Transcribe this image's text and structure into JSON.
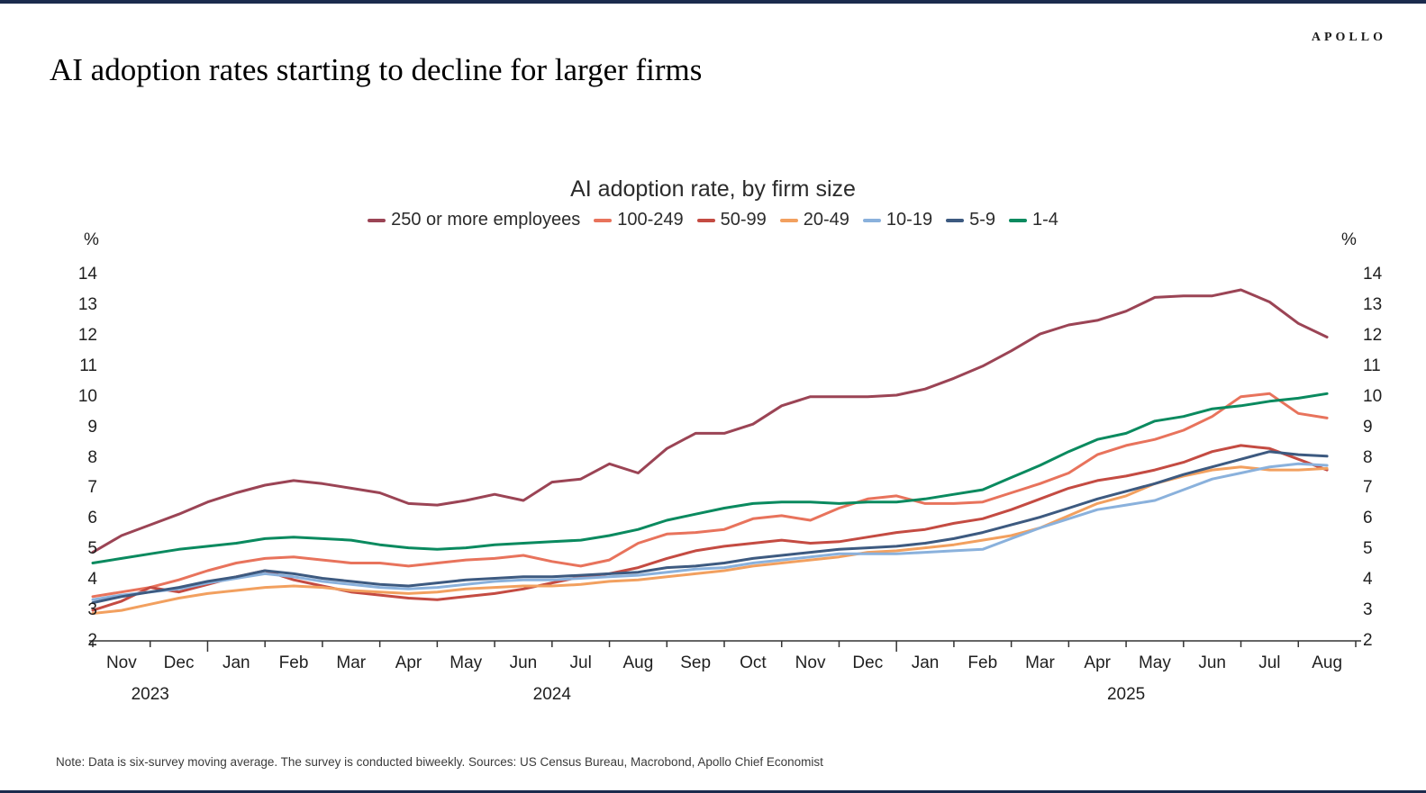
{
  "header": {
    "brand": "APOLLO",
    "page_title": "AI adoption rates starting to decline for larger firms"
  },
  "footnote": "Note: Data is six-survey moving average. The survey is conducted biweekly. Sources: US Census Bureau, Macrobond, Apollo Chief Economist",
  "chart_data": {
    "type": "line",
    "title": "AI adoption rate, by firm size",
    "legend_position": "top",
    "grid": false,
    "points_per_month": 2,
    "y_axis": {
      "unit_label": "%",
      "min": 2,
      "max": 14,
      "ticks": [
        14,
        13,
        12,
        11,
        10,
        9,
        8,
        7,
        6,
        5,
        4,
        3,
        2
      ]
    },
    "x_axis": {
      "months": [
        "Nov",
        "Dec",
        "Jan",
        "Feb",
        "Mar",
        "Apr",
        "May",
        "Jun",
        "Jul",
        "Aug",
        "Sep",
        "Oct",
        "Nov",
        "Dec",
        "Jan",
        "Feb",
        "Mar",
        "Apr",
        "May",
        "Jun",
        "Jul",
        "Aug"
      ],
      "years": [
        {
          "label": "2023",
          "start_slot": 0,
          "span": 2
        },
        {
          "label": "2024",
          "start_slot": 2,
          "span": 12
        },
        {
          "label": "2025",
          "start_slot": 14,
          "span": 8
        }
      ]
    },
    "series": [
      {
        "name": "250 or more employees",
        "color": "#9B4455",
        "values": [
          4.9,
          5.45,
          5.8,
          6.15,
          6.55,
          6.85,
          7.1,
          7.25,
          7.15,
          7.0,
          6.85,
          6.5,
          6.45,
          6.6,
          6.8,
          6.6,
          7.2,
          7.3,
          7.8,
          7.5,
          8.3,
          8.8,
          8.8,
          9.1,
          9.7,
          10.0,
          10.0,
          10.0,
          10.05,
          10.25,
          10.6,
          11.0,
          11.5,
          12.05,
          12.35,
          12.5,
          12.8,
          13.25,
          13.3,
          13.3,
          13.5,
          13.1,
          12.4,
          11.95
        ]
      },
      {
        "name": "100-249",
        "color": "#E8735C",
        "values": [
          3.45,
          3.6,
          3.75,
          4.0,
          4.3,
          4.55,
          4.7,
          4.75,
          4.65,
          4.55,
          4.55,
          4.45,
          4.55,
          4.65,
          4.7,
          4.8,
          4.6,
          4.45,
          4.65,
          5.2,
          5.5,
          5.55,
          5.65,
          6.0,
          6.1,
          5.95,
          6.35,
          6.65,
          6.75,
          6.5,
          6.5,
          6.55,
          6.85,
          7.15,
          7.5,
          8.1,
          8.4,
          8.6,
          8.9,
          9.35,
          10.0,
          10.1,
          9.45,
          9.3
        ]
      },
      {
        "name": "50-99",
        "color": "#C44B42",
        "values": [
          3.0,
          3.3,
          3.75,
          3.6,
          3.85,
          4.1,
          4.3,
          4.0,
          3.8,
          3.6,
          3.5,
          3.4,
          3.35,
          3.45,
          3.55,
          3.7,
          3.9,
          4.1,
          4.2,
          4.4,
          4.7,
          4.95,
          5.1,
          5.2,
          5.3,
          5.2,
          5.25,
          5.4,
          5.55,
          5.65,
          5.85,
          6.0,
          6.3,
          6.65,
          7.0,
          7.25,
          7.4,
          7.6,
          7.85,
          8.2,
          8.4,
          8.3,
          7.95,
          7.6
        ]
      },
      {
        "name": "20-49",
        "color": "#F2A05F",
        "values": [
          2.9,
          3.0,
          3.2,
          3.4,
          3.55,
          3.65,
          3.75,
          3.8,
          3.75,
          3.65,
          3.6,
          3.55,
          3.6,
          3.7,
          3.75,
          3.8,
          3.8,
          3.85,
          3.95,
          4.0,
          4.1,
          4.2,
          4.3,
          4.45,
          4.55,
          4.65,
          4.75,
          4.9,
          4.95,
          5.05,
          5.15,
          5.3,
          5.45,
          5.7,
          6.1,
          6.5,
          6.75,
          7.15,
          7.4,
          7.6,
          7.7,
          7.6,
          7.6,
          7.65
        ]
      },
      {
        "name": "10-19",
        "color": "#8AB1DC",
        "values": [
          3.35,
          3.5,
          3.6,
          3.7,
          3.9,
          4.05,
          4.2,
          4.1,
          3.95,
          3.85,
          3.75,
          3.7,
          3.75,
          3.85,
          3.95,
          4.0,
          4.0,
          4.05,
          4.1,
          4.15,
          4.25,
          4.35,
          4.4,
          4.55,
          4.65,
          4.75,
          4.85,
          4.85,
          4.85,
          4.9,
          4.95,
          5.0,
          5.35,
          5.7,
          6.0,
          6.3,
          6.45,
          6.6,
          6.95,
          7.3,
          7.5,
          7.7,
          7.8,
          7.75
        ]
      },
      {
        "name": "5-9",
        "color": "#3D5A80",
        "values": [
          3.25,
          3.45,
          3.6,
          3.75,
          3.95,
          4.1,
          4.3,
          4.2,
          4.05,
          3.95,
          3.85,
          3.8,
          3.9,
          4.0,
          4.05,
          4.1,
          4.1,
          4.15,
          4.2,
          4.25,
          4.4,
          4.45,
          4.55,
          4.7,
          4.8,
          4.9,
          5.0,
          5.05,
          5.1,
          5.2,
          5.35,
          5.55,
          5.8,
          6.05,
          6.35,
          6.65,
          6.9,
          7.15,
          7.45,
          7.7,
          7.95,
          8.2,
          8.1,
          8.05
        ]
      },
      {
        "name": "1-4",
        "color": "#0A8A5F",
        "values": [
          4.55,
          4.7,
          4.85,
          5.0,
          5.1,
          5.2,
          5.35,
          5.4,
          5.35,
          5.3,
          5.15,
          5.05,
          5.0,
          5.05,
          5.15,
          5.2,
          5.25,
          5.3,
          5.45,
          5.65,
          5.95,
          6.15,
          6.35,
          6.5,
          6.55,
          6.55,
          6.5,
          6.55,
          6.55,
          6.65,
          6.8,
          6.95,
          7.35,
          7.75,
          8.2,
          8.6,
          8.8,
          9.2,
          9.35,
          9.6,
          9.7,
          9.85,
          9.95,
          10.1
        ]
      }
    ]
  }
}
